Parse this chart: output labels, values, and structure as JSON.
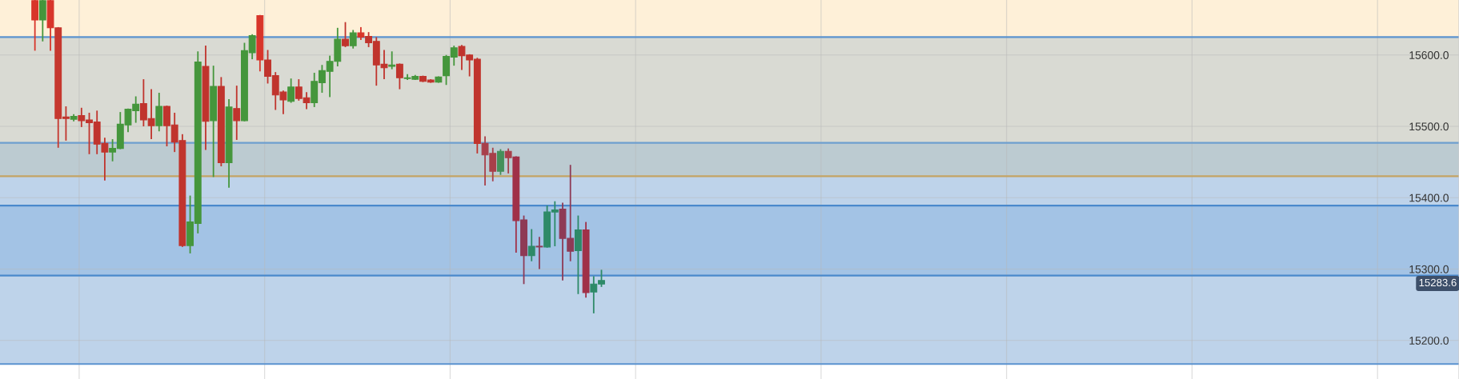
{
  "chart_data": {
    "type": "candlestick",
    "categories": [
      null,
      null,
      null,
      null,
      null,
      null,
      null,
      null,
      null,
      null,
      null,
      null,
      null,
      null,
      null,
      null,
      null,
      null,
      null,
      null,
      null,
      null,
      null,
      null,
      null,
      null,
      null,
      null,
      null,
      null,
      null,
      null,
      null,
      null,
      null,
      null,
      null,
      null,
      null,
      null,
      null,
      null,
      null,
      null,
      null,
      null,
      null,
      null,
      null,
      null,
      null,
      null,
      null,
      null,
      null,
      null,
      null,
      null,
      null,
      null,
      null,
      null,
      null,
      null,
      null,
      null,
      null,
      null,
      null,
      null,
      null,
      null,
      null,
      null,
      null,
      null,
      null,
      null,
      null,
      null,
      null,
      null,
      null,
      null,
      null,
      null,
      null,
      null,
      null,
      null,
      null,
      null,
      null,
      null,
      null,
      null,
      null,
      null,
      null,
      null,
      null,
      null,
      null,
      null,
      null,
      null,
      null,
      null,
      null,
      null,
      null,
      null,
      null,
      null,
      null,
      null,
      null,
      null,
      null,
      null,
      null,
      null,
      null,
      null,
      null,
      null,
      null,
      null,
      null,
      null,
      null,
      null,
      null,
      null,
      null,
      null,
      null,
      null,
      null,
      null,
      null,
      null,
      null,
      null,
      null,
      null,
      null,
      null,
      null,
      null,
      null,
      null,
      null,
      null,
      null,
      null,
      null,
      null,
      null,
      null,
      null,
      null,
      null,
      null,
      null,
      null,
      null,
      null,
      null,
      null,
      null,
      null,
      null,
      null,
      null,
      null,
      null,
      null,
      null,
      null,
      null,
      null,
      null,
      null,
      null,
      null,
      null,
      null
    ],
    "ohlc": [
      null,
      null,
      null,
      null,
      [
        15676,
        15676,
        15607,
        15649
      ],
      [
        15649,
        15676,
        15620,
        15676
      ],
      [
        15676,
        15676,
        15607,
        15638
      ],
      [
        15638,
        15638,
        15471,
        15511
      ],
      [
        15513,
        15527,
        15481,
        15511
      ],
      [
        15510,
        15516,
        15508,
        15514
      ],
      [
        15515,
        15525,
        15500,
        15508
      ],
      [
        15509,
        15518,
        15462,
        15505
      ],
      [
        15506,
        15521,
        15462,
        15475
      ],
      [
        15476,
        15483,
        15425,
        15464
      ],
      [
        15464,
        15481,
        15452,
        15469
      ],
      [
        15469,
        15519,
        15469,
        15503
      ],
      [
        15502,
        15524,
        15493,
        15524
      ],
      [
        15522,
        15541,
        15506,
        15531
      ],
      [
        15532,
        15565,
        15501,
        15509
      ],
      [
        15511,
        15551,
        15483,
        15501
      ],
      [
        15501,
        15546,
        15494,
        15528
      ],
      [
        15528,
        15528,
        15473,
        15501
      ],
      [
        15502,
        15518,
        15465,
        15478
      ],
      [
        15480,
        15488,
        15332,
        15333
      ],
      [
        15333,
        15402,
        15323,
        15366
      ],
      [
        15364,
        15604,
        15351,
        15590
      ],
      [
        15584,
        15612,
        15468,
        15507
      ],
      [
        15508,
        15584,
        15430,
        15556
      ],
      [
        15556,
        15568,
        15445,
        15449
      ],
      [
        15449,
        15537,
        15415,
        15527
      ],
      [
        15525,
        15556,
        15482,
        15508
      ],
      [
        15508,
        15616,
        15508,
        15606
      ],
      [
        15603,
        15628,
        15595,
        15627
      ],
      [
        15655,
        15655,
        15578,
        15593
      ],
      [
        15593,
        15606,
        15561,
        15570
      ],
      [
        15571,
        15575,
        15524,
        15544
      ],
      [
        15548,
        15549,
        15518,
        15537
      ],
      [
        15535,
        15566,
        15534,
        15555
      ],
      [
        15555,
        15565,
        15537,
        15539
      ],
      [
        15540,
        15547,
        15525,
        15533
      ],
      [
        15533,
        15574,
        15528,
        15563
      ],
      [
        15561,
        15585,
        15548,
        15578
      ],
      [
        15577,
        15598,
        15542,
        15591
      ],
      [
        15591,
        15637,
        15585,
        15622
      ],
      [
        15622,
        15645,
        15612,
        15613
      ],
      [
        15613,
        15634,
        15610,
        15631
      ],
      [
        15631,
        15638,
        15622,
        15625
      ],
      [
        15626,
        15631,
        15612,
        15617
      ],
      [
        15619,
        15624,
        15558,
        15586
      ],
      [
        15587,
        15606,
        15567,
        15582
      ],
      [
        15584,
        15604,
        15581,
        15586
      ],
      [
        15587,
        15587,
        15553,
        15568
      ],
      [
        15567,
        15572,
        15566,
        15568
      ],
      [
        15566,
        15571,
        15566,
        15570
      ],
      [
        15570,
        15570,
        15563,
        15563
      ],
      [
        15565,
        15565,
        15562,
        15562
      ],
      [
        15562,
        15569,
        15562,
        15569
      ],
      [
        15571,
        15599,
        15559,
        15598
      ],
      [
        15597,
        15612,
        15586,
        15610
      ],
      [
        15612,
        15613,
        15580,
        15599
      ],
      [
        15600,
        15600,
        15571,
        15593
      ],
      [
        15594,
        15595,
        15463,
        15476
      ],
      [
        15476,
        15485,
        15418,
        15460
      ],
      [
        15462,
        15469,
        15424,
        15437
      ],
      [
        15437,
        15467,
        15433,
        15465
      ],
      [
        15465,
        15468,
        15435,
        15456
      ],
      [
        15457,
        15457,
        15324,
        15368
      ],
      [
        15369,
        15374,
        15280,
        15319
      ],
      [
        15319,
        15355,
        15312,
        15332
      ],
      [
        15332,
        15344,
        15301,
        15331
      ],
      [
        15331,
        15388,
        15331,
        15380
      ],
      [
        15380,
        15394,
        15333,
        15383
      ],
      [
        15384,
        15392,
        15285,
        15343
      ],
      [
        15343,
        15445,
        15312,
        15325
      ],
      [
        15326,
        15374,
        15266,
        15355
      ],
      [
        15355,
        15365,
        15261,
        15267
      ],
      [
        15268,
        15289,
        15239,
        15279
      ],
      [
        15279,
        15298,
        15276,
        15284
      ],
      null,
      null,
      null,
      null,
      null,
      null,
      null,
      null,
      null,
      null,
      null,
      null,
      null,
      null,
      null,
      null,
      null,
      null,
      null,
      null,
      null,
      null,
      null,
      null,
      null,
      null,
      null,
      null,
      null,
      null,
      null,
      null,
      null,
      null,
      null,
      null,
      null,
      null,
      null,
      null,
      null,
      null,
      null,
      null,
      null,
      null,
      null,
      null,
      null,
      null,
      null,
      null,
      null,
      null,
      null,
      null,
      null,
      null,
      null,
      null,
      null,
      null,
      null,
      null,
      null,
      null,
      null,
      null,
      null,
      null,
      null,
      null,
      null,
      null,
      null,
      null,
      null,
      null,
      null,
      null,
      null,
      null,
      null,
      null,
      null,
      null,
      null,
      null,
      null,
      null,
      null,
      null,
      null,
      null,
      null,
      null,
      null,
      null,
      null,
      null,
      null,
      null,
      null,
      null,
      null,
      null,
      null,
      null,
      null,
      null
    ],
    "colors": [
      null,
      null,
      null,
      null,
      "#d8352a",
      "#45963c",
      "#d8352a",
      "#c6372e",
      "#c0342d",
      "#45963c",
      "#c0342d",
      "#c0342d",
      "#c0342d",
      "#c0342d",
      "#45963c",
      "#45963c",
      "#45963c",
      "#45963c",
      "#c0342d",
      "#c0342d",
      "#45963c",
      "#c0342d",
      "#c0342d",
      "#c0342d",
      "#45963c",
      "#45963c",
      "#c0342d",
      "#45963c",
      "#c0342d",
      "#45963c",
      "#c0342d",
      "#45963c",
      "#45963c",
      "#d8352a",
      "#c0342d",
      "#c0342d",
      "#c0342d",
      "#45963c",
      "#c0342d",
      "#c0342d",
      "#45963c",
      "#45963c",
      "#45963c",
      "#45963c",
      "#c0342d",
      "#45963c",
      "#d8352a",
      "#c0342d",
      "#c0342d",
      "#c0342d",
      "#45963c",
      "#c0342d",
      "#45963c",
      "#45963c",
      "#c0342d",
      "#c0342d",
      "#45963c",
      "#45963c",
      "#45963c",
      "#c0342d",
      "#c0342d",
      "#c0342d",
      "#a8404a",
      "#a8404a",
      "#45905a",
      "#a8404a",
      "#a03048",
      "#8e3a55",
      "#2e8a68",
      "#8e3a55",
      "#2e8a68",
      "#2e8a68",
      "#8e3a55",
      "#8e3a55",
      "#2e8a68",
      "#a03048",
      "#2e8a68",
      "#2e8a68",
      null,
      null,
      null,
      null,
      null,
      null,
      null,
      null,
      null,
      null,
      null,
      null,
      null,
      null,
      null,
      null,
      null,
      null,
      null,
      null,
      null,
      null,
      null,
      null,
      null,
      null,
      null,
      null,
      null,
      null,
      null,
      null,
      null,
      null,
      null,
      null,
      null,
      null,
      null,
      null,
      null,
      null,
      null,
      null,
      null,
      null,
      null,
      null,
      null,
      null,
      null,
      null,
      null,
      null,
      null,
      null,
      null,
      null,
      null,
      null,
      null,
      null,
      null,
      null,
      null,
      null,
      null,
      null,
      null,
      null,
      null,
      null,
      null,
      null,
      null,
      null,
      null,
      null,
      null,
      null,
      null,
      null,
      null,
      null,
      null,
      null,
      null,
      null,
      null,
      null,
      null,
      null,
      null,
      null,
      null,
      null,
      null,
      null,
      null,
      null,
      null,
      null,
      null,
      null,
      null,
      null,
      null,
      null,
      null,
      null
    ],
    "ylim": [
      15146,
      15677
    ],
    "yticks": [
      {
        "value": 15200,
        "label": "15200.0"
      },
      {
        "value": 15300,
        "label": "15300.0"
      },
      {
        "value": 15400,
        "label": "15400.0"
      },
      {
        "value": 15500,
        "label": "15500.0"
      },
      {
        "value": 15600,
        "label": "15600.0"
      }
    ],
    "bands": [
      {
        "axis": "y",
        "from": 15625,
        "to": 15677,
        "color": "#fef0d8"
      },
      {
        "axis": "y",
        "from": 15477,
        "to": 15625,
        "color": "#d9dad3"
      },
      {
        "axis": "y",
        "from": 15430,
        "to": 15477,
        "color": "#bccbd1"
      },
      {
        "axis": "y",
        "from": 15167,
        "to": 15430,
        "color": "#bed3ea"
      },
      {
        "axis": "y",
        "from": 15291,
        "to": 15389,
        "color": "#a3c3e5"
      }
    ],
    "ref_lines": [
      {
        "axis": "y",
        "value": 15625,
        "color": "#5b93cf"
      },
      {
        "axis": "y",
        "value": 15477,
        "color": "#6e9fcf"
      },
      {
        "axis": "y",
        "value": 15430,
        "color": "#c4a464"
      },
      {
        "axis": "y",
        "value": 15389,
        "color": "#4a89cc"
      },
      {
        "axis": "y",
        "value": 15291,
        "color": "#4a89cc"
      },
      {
        "axis": "y",
        "value": 15167,
        "color": "#5b93cf"
      }
    ],
    "annotations": [
      "15283.6"
    ],
    "grid": true,
    "tick_labels": "y"
  }
}
